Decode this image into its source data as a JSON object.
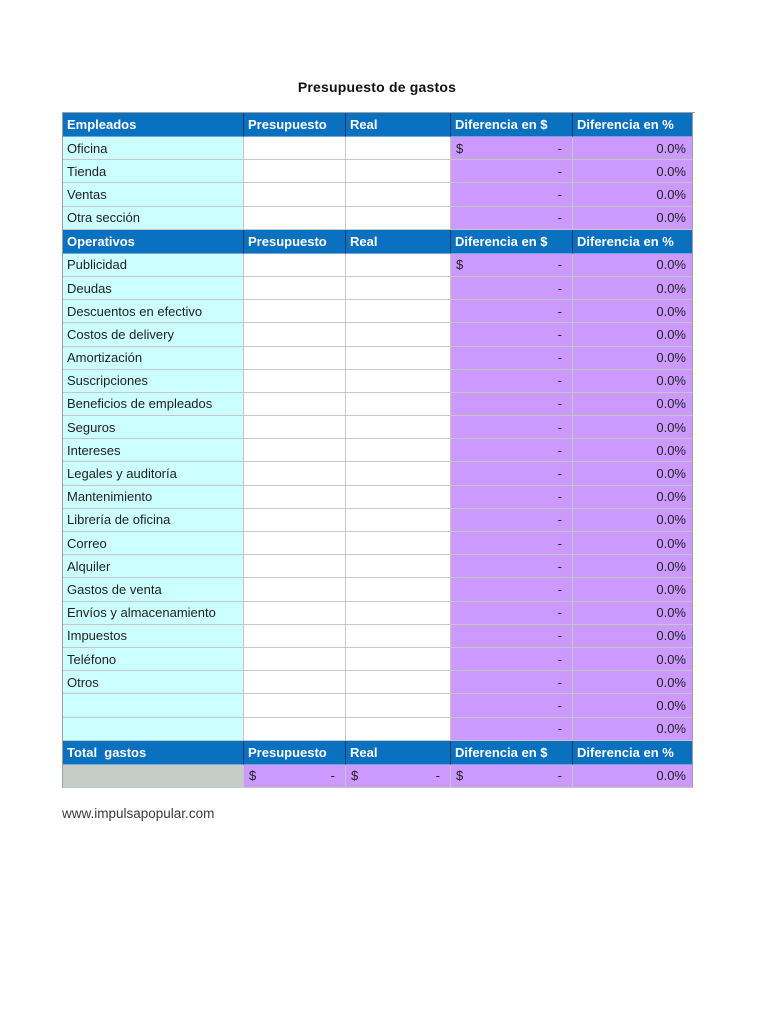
{
  "page": {
    "title": "Presupuesto de gastos",
    "footer_link": "www.impulsapopular.com"
  },
  "colors": {
    "header_bg": "#0A70C0",
    "header_text": "#FFFFFF",
    "category_bg": "#CCFFFF",
    "diff_bg": "#CC99FF",
    "total_label_bg": "#C5CDC9",
    "body_text": "#1F1F1F"
  },
  "table": {
    "value_columns": [
      "Presupuesto",
      "Real",
      "Diferencia en $",
      "Diferencia en %"
    ],
    "sections": [
      {
        "header": "Empleados",
        "rows": [
          {
            "label": "Oficina",
            "dollar": "$",
            "presupuesto": "",
            "real": "",
            "diff_dollar": "-",
            "diff_pct": "0.0%"
          },
          {
            "label": "Tienda",
            "dollar": "",
            "presupuesto": "",
            "real": "",
            "diff_dollar": "-",
            "diff_pct": "0.0%"
          },
          {
            "label": "Ventas",
            "dollar": "",
            "presupuesto": "",
            "real": "",
            "diff_dollar": "-",
            "diff_pct": "0.0%"
          },
          {
            "label": "Otra sección",
            "dollar": "",
            "presupuesto": "",
            "real": "",
            "diff_dollar": "-",
            "diff_pct": "0.0%"
          }
        ]
      },
      {
        "header": "Operativos",
        "rows": [
          {
            "label": "Publicidad",
            "dollar": "$",
            "presupuesto": "",
            "real": "",
            "diff_dollar": "-",
            "diff_pct": "0.0%"
          },
          {
            "label": "Deudas",
            "dollar": "",
            "presupuesto": "",
            "real": "",
            "diff_dollar": "-",
            "diff_pct": "0.0%"
          },
          {
            "label": "Descuentos en efectivo",
            "dollar": "",
            "presupuesto": "",
            "real": "",
            "diff_dollar": "-",
            "diff_pct": "0.0%"
          },
          {
            "label": "Costos de delivery",
            "dollar": "",
            "presupuesto": "",
            "real": "",
            "diff_dollar": "-",
            "diff_pct": "0.0%"
          },
          {
            "label": "Amortización",
            "dollar": "",
            "presupuesto": "",
            "real": "",
            "diff_dollar": "-",
            "diff_pct": "0.0%"
          },
          {
            "label": "Suscripciones",
            "dollar": "",
            "presupuesto": "",
            "real": "",
            "diff_dollar": "-",
            "diff_pct": "0.0%"
          },
          {
            "label": "Beneficios de empleados",
            "dollar": "",
            "presupuesto": "",
            "real": "",
            "diff_dollar": "-",
            "diff_pct": "0.0%"
          },
          {
            "label": "Seguros",
            "dollar": "",
            "presupuesto": "",
            "real": "",
            "diff_dollar": "-",
            "diff_pct": "0.0%"
          },
          {
            "label": "Intereses",
            "dollar": "",
            "presupuesto": "",
            "real": "",
            "diff_dollar": "-",
            "diff_pct": "0.0%"
          },
          {
            "label": "Legales y auditoría",
            "dollar": "",
            "presupuesto": "",
            "real": "",
            "diff_dollar": "-",
            "diff_pct": "0.0%"
          },
          {
            "label": "Mantenimiento",
            "dollar": "",
            "presupuesto": "",
            "real": "",
            "diff_dollar": "-",
            "diff_pct": "0.0%"
          },
          {
            "label": "Librería de oficina",
            "dollar": "",
            "presupuesto": "",
            "real": "",
            "diff_dollar": "-",
            "diff_pct": "0.0%"
          },
          {
            "label": "Correo",
            "dollar": "",
            "presupuesto": "",
            "real": "",
            "diff_dollar": "-",
            "diff_pct": "0.0%"
          },
          {
            "label": "Alquiler",
            "dollar": "",
            "presupuesto": "",
            "real": "",
            "diff_dollar": "-",
            "diff_pct": "0.0%"
          },
          {
            "label": "Gastos de venta",
            "dollar": "",
            "presupuesto": "",
            "real": "",
            "diff_dollar": "-",
            "diff_pct": "0.0%"
          },
          {
            "label": "Envíos y almacenamiento",
            "dollar": "",
            "presupuesto": "",
            "real": "",
            "diff_dollar": "-",
            "diff_pct": "0.0%"
          },
          {
            "label": "Impuestos",
            "dollar": "",
            "presupuesto": "",
            "real": "",
            "diff_dollar": "-",
            "diff_pct": "0.0%"
          },
          {
            "label": "Teléfono",
            "dollar": "",
            "presupuesto": "",
            "real": "",
            "diff_dollar": "-",
            "diff_pct": "0.0%"
          },
          {
            "label": "Otros",
            "dollar": "",
            "presupuesto": "",
            "real": "",
            "diff_dollar": "-",
            "diff_pct": "0.0%"
          },
          {
            "label": "",
            "dollar": "",
            "presupuesto": "",
            "real": "",
            "diff_dollar": "-",
            "diff_pct": "0.0%"
          },
          {
            "label": "",
            "dollar": "",
            "presupuesto": "",
            "real": "",
            "diff_dollar": "-",
            "diff_pct": "0.0%"
          }
        ]
      }
    ],
    "total": {
      "header": "Total  gastos",
      "label": "",
      "presupuesto": {
        "dollar": "$",
        "value": "-"
      },
      "real": {
        "dollar": "$",
        "value": "-"
      },
      "diff_dollar": {
        "dollar": "$",
        "value": "-"
      },
      "diff_pct": "0.0%"
    }
  }
}
